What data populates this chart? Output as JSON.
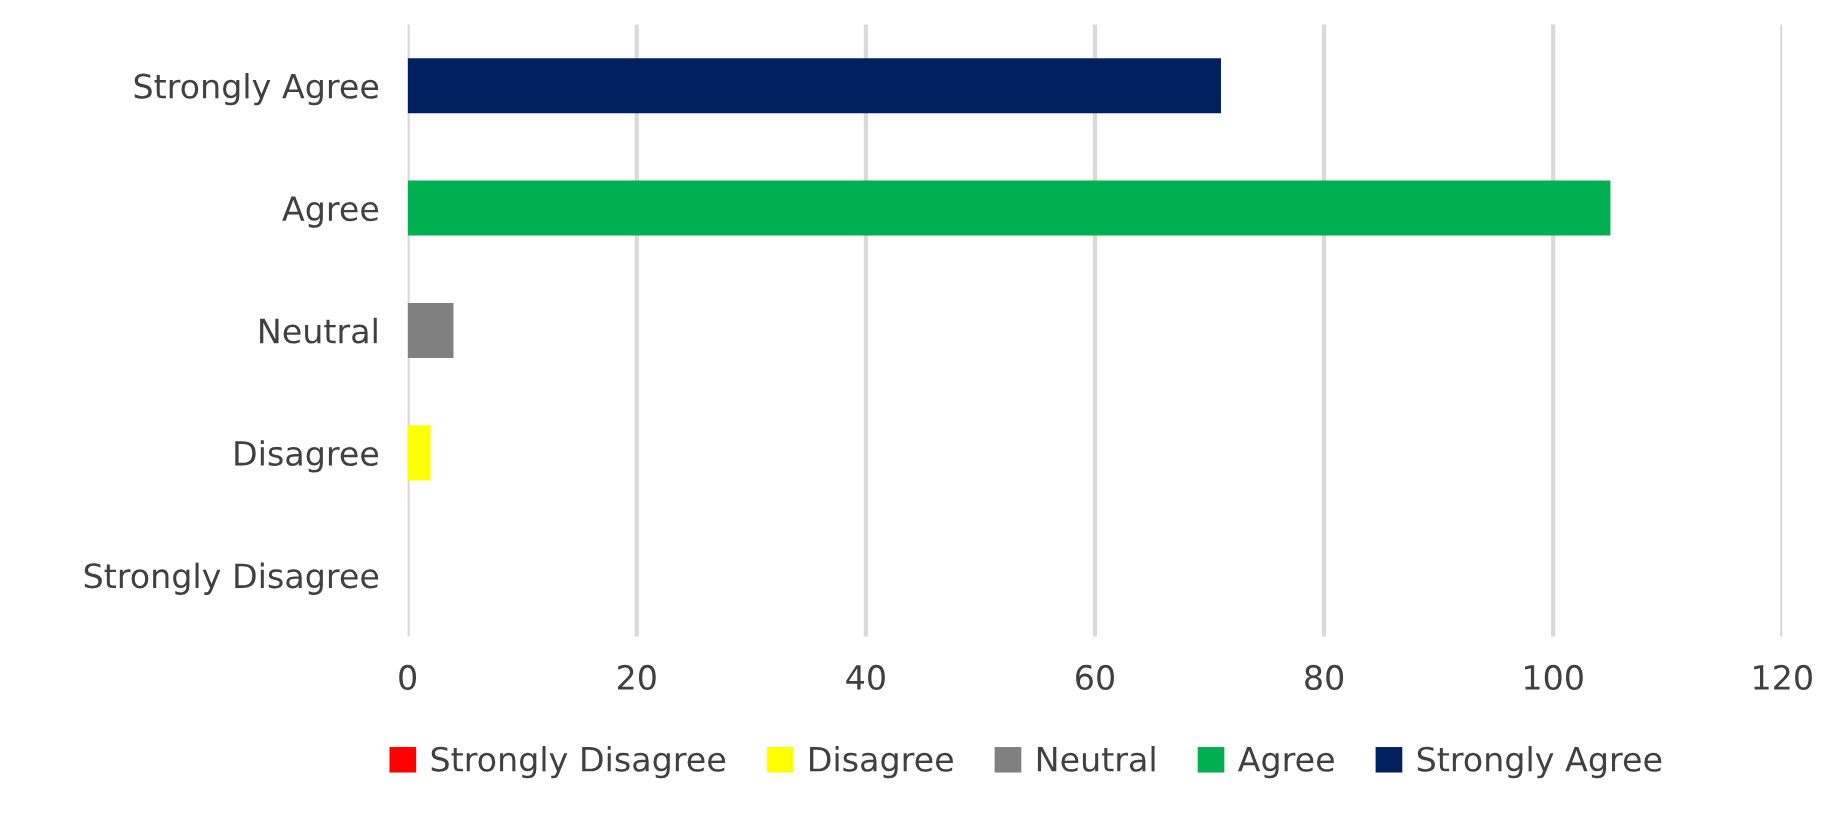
{
  "chart_data": {
    "type": "bar",
    "orientation": "horizontal",
    "categories": [
      "Strongly Agree",
      "Agree",
      "Neutral",
      "Disagree",
      "Strongly Disagree"
    ],
    "series": [
      {
        "name": "Strongly Disagree",
        "color": "#ff0000",
        "values": [
          null,
          null,
          null,
          null,
          0
        ]
      },
      {
        "name": "Disagree",
        "color": "#ffff00",
        "values": [
          null,
          null,
          null,
          2,
          null
        ]
      },
      {
        "name": "Neutral",
        "color": "#808080",
        "values": [
          null,
          null,
          4,
          null,
          null
        ]
      },
      {
        "name": "Agree",
        "color": "#00b050",
        "values": [
          null,
          105,
          null,
          null,
          null
        ]
      },
      {
        "name": "Strongly Agree",
        "color": "#002060",
        "values": [
          71,
          null,
          null,
          null,
          null
        ]
      }
    ],
    "xlim": [
      0,
      120
    ],
    "xticks": [
      0,
      20,
      40,
      60,
      80,
      100,
      120
    ],
    "grid": "x",
    "legend": "bottom"
  }
}
